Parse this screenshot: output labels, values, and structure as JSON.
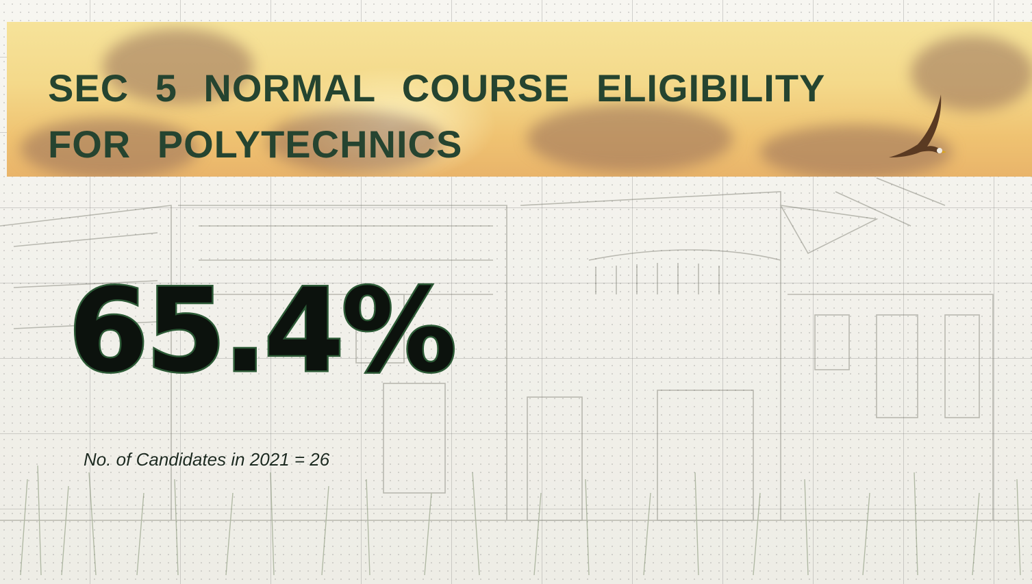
{
  "slide": {
    "title_line1": "SEC 5 NORMAL COURSE ELIGIBILITY",
    "title_line2": "FOR POLYTECHNICS",
    "percentage": "65.4%",
    "candidates_note": "No. of Candidates in 2021 = 26"
  },
  "icons": {
    "banner_bird": "eagle-icon"
  },
  "colors": {
    "title": "#254430",
    "percentage_fill": "#0c120d",
    "percentage_outline": "#2c5a36",
    "banner_top": "#f6e39a",
    "banner_bottom": "#e9b46a"
  }
}
